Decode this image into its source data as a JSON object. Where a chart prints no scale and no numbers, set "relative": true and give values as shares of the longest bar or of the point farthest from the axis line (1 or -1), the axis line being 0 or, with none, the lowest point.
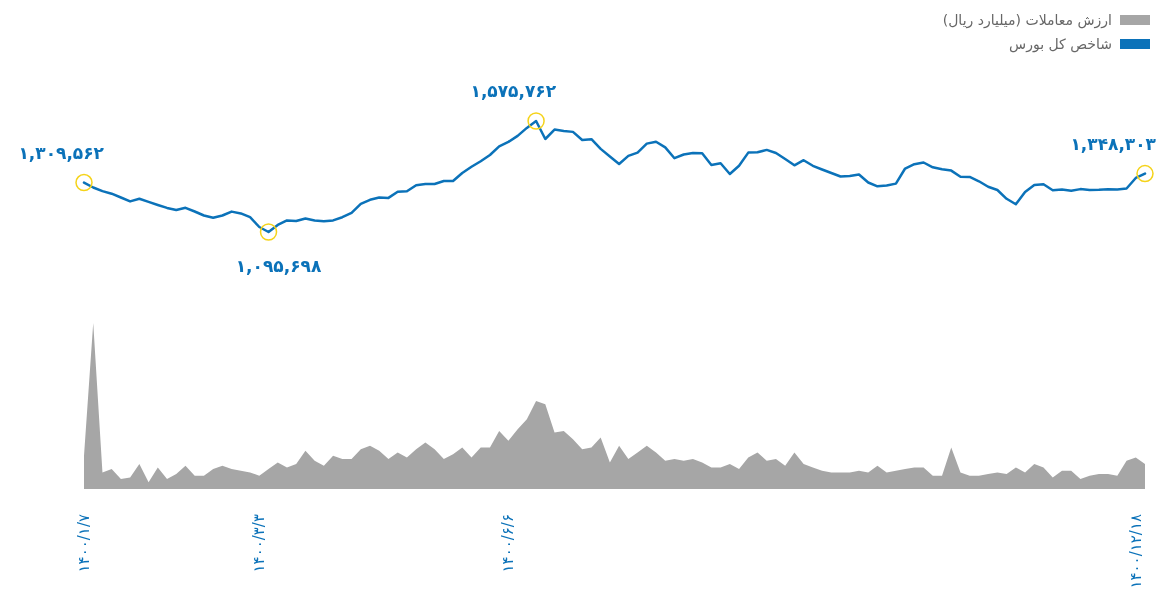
{
  "chart_data": [
    {
      "type": "line",
      "legend": "top right",
      "categories": [
        null,
        null,
        null,
        null,
        null,
        null,
        null,
        null,
        null,
        null,
        null,
        null,
        null,
        null,
        null,
        null,
        null,
        null,
        null,
        null,
        null,
        null,
        null,
        null,
        null,
        null,
        null,
        null,
        null,
        null,
        null,
        null,
        null,
        null,
        null,
        null,
        null,
        null,
        null,
        null,
        null,
        null,
        null,
        null,
        null,
        null,
        null,
        null,
        null,
        null,
        null,
        null,
        null,
        null,
        null,
        null,
        null,
        null,
        null,
        null,
        null,
        null,
        null,
        null,
        null,
        null,
        null,
        null,
        null,
        null,
        null,
        null,
        null,
        null,
        null,
        null,
        null,
        null,
        null,
        null,
        null,
        null,
        null,
        null,
        null,
        null,
        null,
        null,
        null,
        null,
        null,
        null,
        null,
        null,
        null,
        null,
        null,
        null,
        null,
        null,
        null,
        null,
        null,
        null,
        null,
        null,
        null,
        null,
        null,
        null,
        null,
        null,
        null,
        null,
        null,
        null
      ],
      "series": [
        {
          "name": "شاخص کل بورس",
          "color": "#0b72b9",
          "values": [
            1309562,
            1288200,
            1272600,
            1261300,
            1244900,
            1228000,
            1239300,
            1225900,
            1212500,
            1199900,
            1190900,
            1200400,
            1184400,
            1167100,
            1157500,
            1167100,
            1183900,
            1176100,
            1159700,
            1117300,
            1095698,
            1126000,
            1145900,
            1143300,
            1154100,
            1145400,
            1142400,
            1145900,
            1159700,
            1178700,
            1217200,
            1235000,
            1244500,
            1243200,
            1269600,
            1271700,
            1298100,
            1303300,
            1303300,
            1316300,
            1316300,
            1350900,
            1377700,
            1401900,
            1428700,
            1466100,
            1485400,
            1511300,
            1546000,
            1575762,
            1497900,
            1538600,
            1533000,
            1528700,
            1493600,
            1497100,
            1455200,
            1422200,
            1389800,
            1424800,
            1439100,
            1478000,
            1486200,
            1461600,
            1414900,
            1430900,
            1437400,
            1436100,
            1385500,
            1393300,
            1346600,
            1382000,
            1439100,
            1440400,
            1450800,
            1437400,
            1411400,
            1384200,
            1406200,
            1382000,
            1366000,
            1350900,
            1335700,
            1337900,
            1344400,
            1309800,
            1293400,
            1296400,
            1305000,
            1370300,
            1389000,
            1396300,
            1375500,
            1366900,
            1361300,
            1334900,
            1333600,
            1315000,
            1291200,
            1277400,
            1239300,
            1215500,
            1269100,
            1299000,
            1302000,
            1276500,
            1279100,
            1273900,
            1281200,
            1277400,
            1278200,
            1280400,
            1279900,
            1283800,
            1329300,
            1348303
          ],
          "value_labels": [
            "۱,۳۰۹,۵۶۲",
            null,
            null,
            null,
            null,
            null,
            null,
            null,
            null,
            null,
            null,
            null,
            null,
            null,
            null,
            null,
            null,
            null,
            null,
            null,
            "۱,۰۹۵,۶۹۸",
            null,
            null,
            null,
            null,
            null,
            null,
            null,
            null,
            null,
            null,
            null,
            null,
            null,
            null,
            null,
            null,
            null,
            null,
            null,
            null,
            null,
            null,
            null,
            null,
            null,
            null,
            null,
            null,
            "۱,۵۷۵,۷۶۲",
            null,
            null,
            null,
            null,
            null,
            null,
            null,
            null,
            null,
            null,
            null,
            null,
            null,
            null,
            null,
            null,
            null,
            null,
            null,
            null,
            null,
            null,
            null,
            null,
            null,
            null,
            null,
            null,
            null,
            null,
            null,
            null,
            null,
            null,
            null,
            null,
            null,
            null,
            null,
            null,
            null,
            null,
            null,
            null,
            null,
            null,
            null,
            null,
            null,
            null,
            null,
            null,
            null,
            null,
            null,
            null,
            null,
            null,
            null,
            null,
            null,
            null,
            null,
            null,
            null,
            "۱,۳۴۸,۳۰۳"
          ]
        }
      ]
    },
    {
      "type": "area",
      "relative": true,
      "legend": "top right",
      "categories": [
        "۱۴۰۰/۱/۷",
        null,
        null,
        null,
        null,
        null,
        null,
        null,
        null,
        null,
        null,
        null,
        null,
        null,
        null,
        null,
        null,
        null,
        null,
        "۱۴۰۰/۳/۳",
        null,
        null,
        null,
        null,
        null,
        null,
        null,
        null,
        null,
        null,
        null,
        null,
        null,
        null,
        null,
        null,
        null,
        null,
        null,
        null,
        null,
        null,
        null,
        null,
        null,
        null,
        "۱۴۰۰/۶/۶",
        null,
        null,
        null,
        null,
        null,
        null,
        null,
        null,
        null,
        null,
        null,
        null,
        null,
        null,
        null,
        null,
        null,
        null,
        null,
        null,
        null,
        null,
        null,
        null,
        null,
        null,
        null,
        null,
        null,
        null,
        null,
        null,
        null,
        null,
        null,
        null,
        null,
        null,
        null,
        null,
        null,
        null,
        null,
        null,
        null,
        null,
        null,
        null,
        null,
        null,
        null,
        null,
        null,
        null,
        null,
        null,
        null,
        null,
        null,
        null,
        null,
        null,
        null,
        null,
        null,
        null,
        null,
        "۱۴۰۰/۱۲/۱۸",
        null
      ],
      "series": [
        {
          "name": "ارزش معاملات (میلیارد ریال)",
          "color": "#a6a6a6",
          "values": [
            0.2,
            1,
            0.1,
            0.12,
            0.06,
            0.07,
            0.15,
            0.04,
            0.13,
            0.06,
            0.09,
            0.14,
            0.08,
            0.08,
            0.12,
            0.14,
            0.12,
            0.11,
            0.1,
            0.08,
            0.12,
            0.16,
            0.13,
            0.15,
            0.23,
            0.17,
            0.14,
            0.2,
            0.18,
            0.18,
            0.24,
            0.26,
            0.23,
            0.18,
            0.22,
            0.19,
            0.24,
            0.28,
            0.24,
            0.18,
            0.21,
            0.25,
            0.19,
            0.25,
            0.25,
            0.35,
            0.29,
            0.36,
            0.42,
            0.53,
            0.51,
            0.34,
            0.35,
            0.3,
            0.24,
            0.25,
            0.31,
            0.16,
            0.26,
            0.18,
            0.22,
            0.26,
            0.22,
            0.17,
            0.18,
            0.17,
            0.18,
            0.16,
            0.13,
            0.13,
            0.15,
            0.12,
            0.19,
            0.22,
            0.17,
            0.18,
            0.14,
            0.22,
            0.15,
            0.13,
            0.11,
            0.1,
            0.1,
            0.1,
            0.11,
            0.1,
            0.14,
            0.1,
            0.11,
            0.12,
            0.13,
            0.13,
            0.08,
            0.08,
            0.25,
            0.1,
            0.08,
            0.08,
            0.09,
            0.1,
            0.09,
            0.13,
            0.1,
            0.15,
            0.13,
            0.07,
            0.11,
            0.11,
            0.06,
            0.08,
            0.09,
            0.09,
            0.08,
            0.17,
            0.19,
            0.15
          ]
        }
      ]
    }
  ]
}
